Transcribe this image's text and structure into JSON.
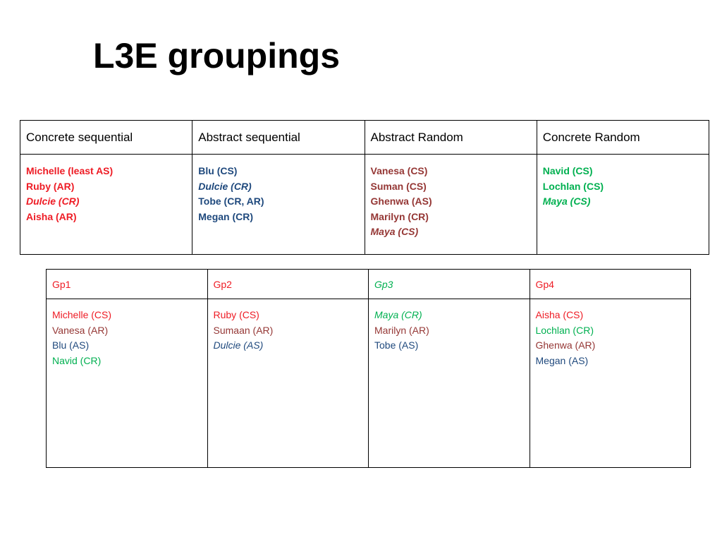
{
  "title": "L3E groupings",
  "colors": {
    "concrete_sequential": "#ee1c25",
    "abstract_sequential": "#1f497d",
    "abstract_random": "#953735",
    "concrete_random": "#00b050"
  },
  "styles_table": {
    "headers": [
      "Concrete sequential",
      "Abstract sequential",
      "Abstract Random",
      "Concrete Random"
    ],
    "columns": [
      [
        {
          "text": "Michelle (least AS)",
          "color": "red",
          "italic": false
        },
        {
          "text": "Ruby (AR)",
          "color": "red",
          "italic": false
        },
        {
          "text": "Dulcie (CR)",
          "color": "red",
          "italic": true
        },
        {
          "text": "Aisha (AR)",
          "color": "red",
          "italic": false
        }
      ],
      [
        {
          "text": "Blu (CS)",
          "color": "blue",
          "italic": false
        },
        {
          "text": "Dulcie (CR)",
          "color": "blue",
          "italic": true
        },
        {
          "text": "Tobe (CR, AR)",
          "color": "blue",
          "italic": false
        },
        {
          "text": "Megan (CR)",
          "color": "blue",
          "italic": false
        }
      ],
      [
        {
          "text": "Vanesa (CS)",
          "color": "brown",
          "italic": false
        },
        {
          "text": "Suman (CS)",
          "color": "brown",
          "italic": false
        },
        {
          "text": "Ghenwa (AS)",
          "color": "brown",
          "italic": false
        },
        {
          "text": "Marilyn (CR)",
          "color": "brown",
          "italic": false
        },
        {
          "text": "Maya (CS)",
          "color": "brown",
          "italic": true
        }
      ],
      [
        {
          "text": "Navid (CS)",
          "color": "green",
          "italic": false
        },
        {
          "text": "Lochlan (CS)",
          "color": "green",
          "italic": false
        },
        {
          "text": "Maya (CS)",
          "color": "green",
          "italic": true
        }
      ]
    ]
  },
  "groups_table": {
    "headers": [
      {
        "text": "Gp1",
        "color": "red",
        "italic": false
      },
      {
        "text": "Gp2",
        "color": "red",
        "italic": false
      },
      {
        "text": "Gp3",
        "color": "green",
        "italic": true
      },
      {
        "text": "Gp4",
        "color": "red",
        "italic": false
      }
    ],
    "columns": [
      [
        {
          "text": "Michelle (CS)",
          "color": "red",
          "italic": false
        },
        {
          "text": "Vanesa (AR)",
          "color": "brown",
          "italic": false
        },
        {
          "text": "Blu (AS)",
          "color": "blue",
          "italic": false
        },
        {
          "text": "Navid (CR)",
          "color": "green",
          "italic": false
        }
      ],
      [
        {
          "text": "Ruby (CS)",
          "color": "red",
          "italic": false
        },
        {
          "text": "Sumaan (AR)",
          "color": "brown",
          "italic": false
        },
        {
          "text": "Dulcie (AS)",
          "color": "blue",
          "italic": true
        }
      ],
      [
        {
          "text": "Maya (CR)",
          "color": "green",
          "italic": true
        },
        {
          "text": "Marilyn (AR)",
          "color": "brown",
          "italic": false
        },
        {
          "text": "Tobe (AS)",
          "color": "blue",
          "italic": false
        }
      ],
      [
        {
          "text": "Aisha (CS)",
          "color": "red",
          "italic": false
        },
        {
          "text": "Lochlan (CR)",
          "color": "green",
          "italic": false
        },
        {
          "text": "Ghenwa (AR)",
          "color": "brown",
          "italic": false
        },
        {
          "text": "Megan (AS)",
          "color": "blue",
          "italic": false
        }
      ]
    ]
  }
}
